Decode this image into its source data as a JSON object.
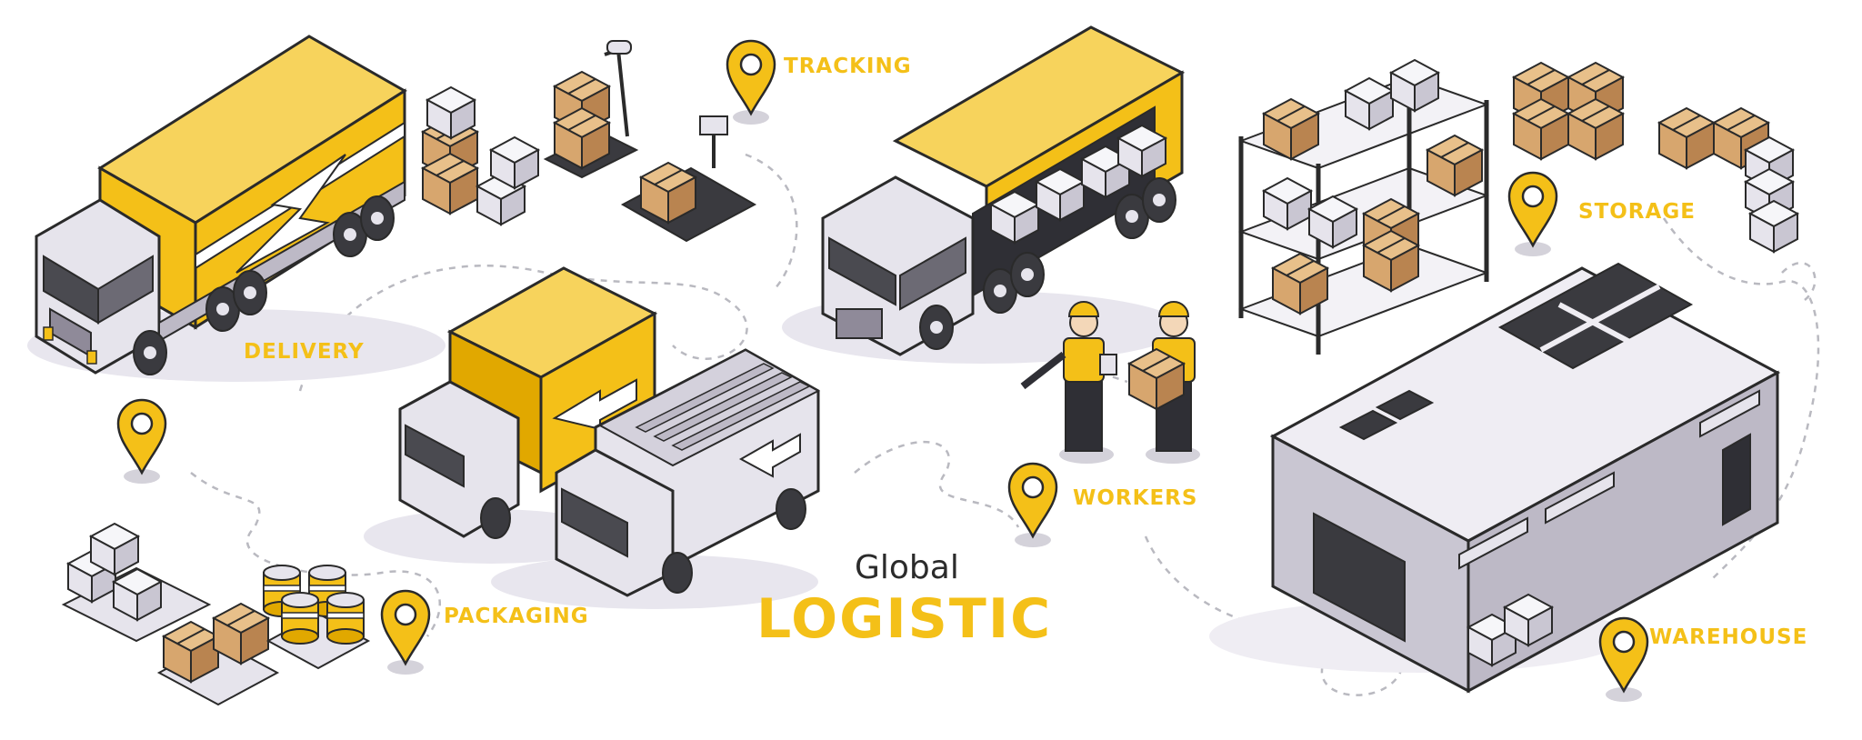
{
  "colors": {
    "accent": "#F4C018",
    "accent_dark": "#E1A800",
    "grey_light": "#E6E4EC",
    "grey_mid": "#BDB9C6",
    "grey_dark": "#8F8A99",
    "outline": "#2A2A2A",
    "box": "#D7A66E",
    "box_dark": "#B98450",
    "path": "#B9B9C0"
  },
  "labels": {
    "tracking": "TRACKING",
    "delivery": "DELIVERY",
    "storage": "STORAGE",
    "workers": "WORKERS",
    "packaging": "PACKAGING",
    "warehouse": "WAREHOUSE"
  },
  "title": {
    "line1": "Global",
    "line2": "LOGISTIC"
  },
  "icons": [
    "location-pin-icon",
    "truck-icon",
    "van-icon",
    "box-icon",
    "shelf-icon",
    "warehouse-icon",
    "worker-icon",
    "scale-icon",
    "pallet-icon",
    "barrel-icon"
  ]
}
